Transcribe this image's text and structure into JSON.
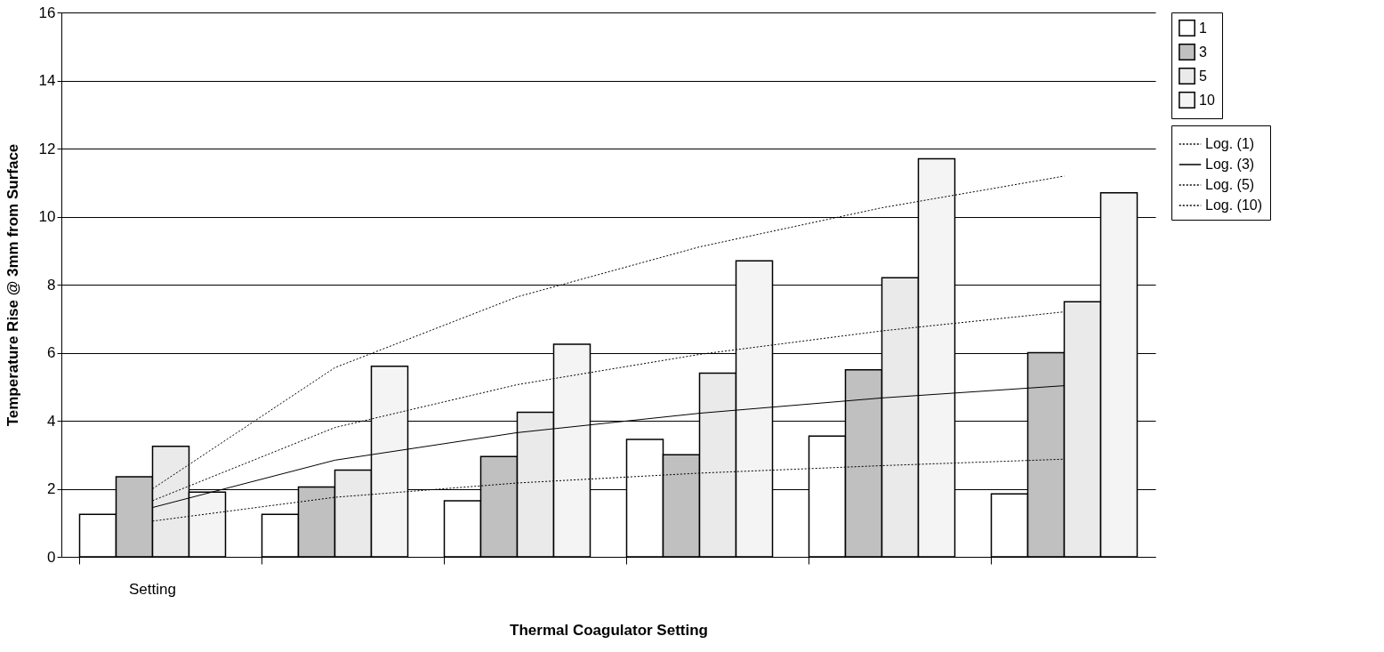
{
  "chart_data": {
    "type": "bar",
    "xlabel": "Thermal Coagulator Setting",
    "ylabel": "Temperature Rise @ 3mm from Surface",
    "categories": [
      "Setting",
      null,
      null,
      null,
      null,
      null
    ],
    "series": [
      {
        "name": "1",
        "color": "#ffffff",
        "values": [
          1.25,
          1.25,
          1.65,
          3.45,
          3.55,
          1.85
        ]
      },
      {
        "name": "3",
        "color": "#c0c0c0",
        "values": [
          2.35,
          2.05,
          2.95,
          3.0,
          5.5,
          6.0
        ]
      },
      {
        "name": "5",
        "color": "#eaeaea",
        "values": [
          3.25,
          2.55,
          4.25,
          5.4,
          8.2,
          7.5
        ]
      },
      {
        "name": "10",
        "color": "#f4f4f4",
        "values": [
          1.9,
          5.6,
          6.25,
          8.7,
          11.7,
          10.7
        ]
      },
      {
        "name": "Log. (1)",
        "type": "line",
        "line_style": "dotted",
        "color": "#000000",
        "values": [
          1.05,
          1.75,
          2.17,
          2.46,
          2.68,
          2.87
        ]
      },
      {
        "name": "Log. (3)",
        "type": "line",
        "line_style": "solid",
        "color": "#000000",
        "values": [
          1.45,
          2.84,
          3.65,
          4.22,
          4.67,
          5.03
        ]
      },
      {
        "name": "Log. (5)",
        "type": "line",
        "line_style": "dotted",
        "color": "#000000",
        "values": [
          1.65,
          3.8,
          5.06,
          5.95,
          6.64,
          7.2
        ]
      },
      {
        "name": "Log. (10)",
        "type": "line",
        "line_style": "dotted",
        "color": "#000000",
        "values": [
          2.0,
          5.56,
          7.64,
          9.11,
          10.26,
          11.19
        ]
      }
    ],
    "ylim": [
      0,
      16
    ],
    "yticks": [
      0,
      2,
      4,
      6,
      8,
      10,
      12,
      14,
      16
    ],
    "grid": "y",
    "legend": "right",
    "marker": "none"
  }
}
